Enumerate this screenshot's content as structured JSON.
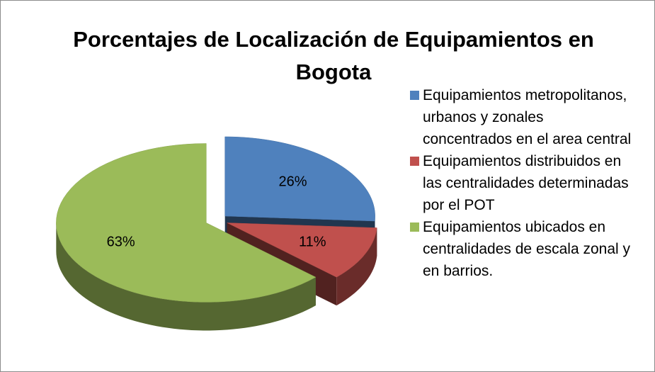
{
  "chart_data": {
    "type": "pie3d",
    "title": "Porcentajes de Localización de Equipamientos en Bogota",
    "categories": [
      "Equipamientos metropolitanos, urbanos y zonales concentrados en el area central",
      "Equipamientos distribuidos en las centralidades determinadas por el POT",
      "Equipamientos ubicados en centralidades de escala zonal y en barrios."
    ],
    "values": [
      26,
      11,
      63
    ],
    "value_labels": [
      "26%",
      "11%",
      "63%"
    ],
    "colors": [
      "#4f81bd",
      "#c0504d",
      "#9bbb59"
    ],
    "legend": "right"
  }
}
